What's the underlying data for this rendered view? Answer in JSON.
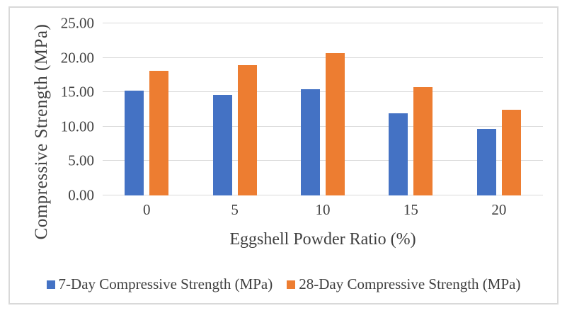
{
  "figure": {
    "background_color": "#ffffff",
    "frame_border_color": "#d9d9d9",
    "gridline_color": "#d9d9d9",
    "text_color": "#3f3f3f"
  },
  "chart_data": {
    "type": "bar",
    "title": "",
    "xlabel": "Eggshell Powder Ratio (%)",
    "ylabel": "Compressive Strength (MPa)",
    "categories": [
      "0",
      "5",
      "10",
      "15",
      "20"
    ],
    "series": [
      {
        "name": "7-Day Compressive Strength (MPa)",
        "color": "#4472C4",
        "values": [
          15.2,
          14.6,
          15.4,
          11.9,
          9.7
        ]
      },
      {
        "name": "28-Day Compressive Strength (MPa)",
        "color": "#ED7D31",
        "values": [
          18.1,
          18.9,
          20.7,
          15.7,
          12.4
        ]
      }
    ],
    "ylim": [
      0,
      25
    ],
    "ytick_step": 5,
    "ytick_labels": [
      "0.00",
      "5.00",
      "10.00",
      "15.00",
      "20.00",
      "25.00"
    ],
    "grid": true,
    "legend_position": "bottom"
  }
}
